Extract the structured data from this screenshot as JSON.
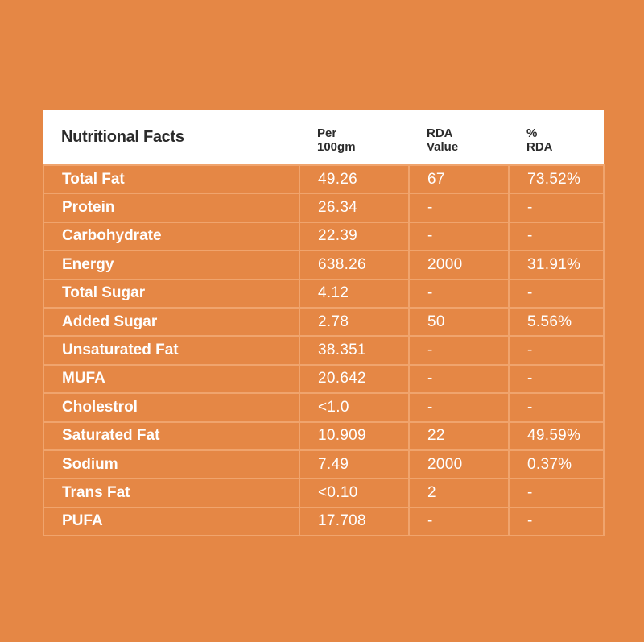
{
  "header": {
    "title": "Nutritional Facts",
    "col2": [
      "Per",
      "100gm"
    ],
    "col3": [
      "RDA",
      "Value"
    ],
    "col4": [
      "%",
      "RDA"
    ]
  },
  "rows": [
    {
      "name": "Total Fat",
      "per100": "49.26",
      "rda": "67",
      "pct": "73.52%"
    },
    {
      "name": "Protein",
      "per100": "26.34",
      "rda": "-",
      "pct": "-"
    },
    {
      "name": "Carbohydrate",
      "per100": "22.39",
      "rda": "-",
      "pct": "-"
    },
    {
      "name": "Energy",
      "per100": "638.26",
      "rda": "2000",
      "pct": "31.91%"
    },
    {
      "name": "Total Sugar",
      "per100": "4.12",
      "rda": "-",
      "pct": "-"
    },
    {
      "name": "Added Sugar",
      "per100": "2.78",
      "rda": "50",
      "pct": "5.56%"
    },
    {
      "name": "Unsaturated Fat",
      "per100": "38.351",
      "rda": "-",
      "pct": "-"
    },
    {
      "name": "MUFA",
      "per100": "20.642",
      "rda": "-",
      "pct": "-"
    },
    {
      "name": "Cholestrol",
      "per100": "<1.0",
      "rda": "-",
      "pct": "-"
    },
    {
      "name": "Saturated Fat",
      "per100": "10.909",
      "rda": "22",
      "pct": "49.59%"
    },
    {
      "name": "Sodium",
      "per100": "7.49",
      "rda": "2000",
      "pct": "0.37%"
    },
    {
      "name": "Trans Fat",
      "per100": "<0.10",
      "rda": "2",
      "pct": "-"
    },
    {
      "name": "PUFA",
      "per100": "17.708",
      "rda": "-",
      "pct": "-"
    }
  ]
}
